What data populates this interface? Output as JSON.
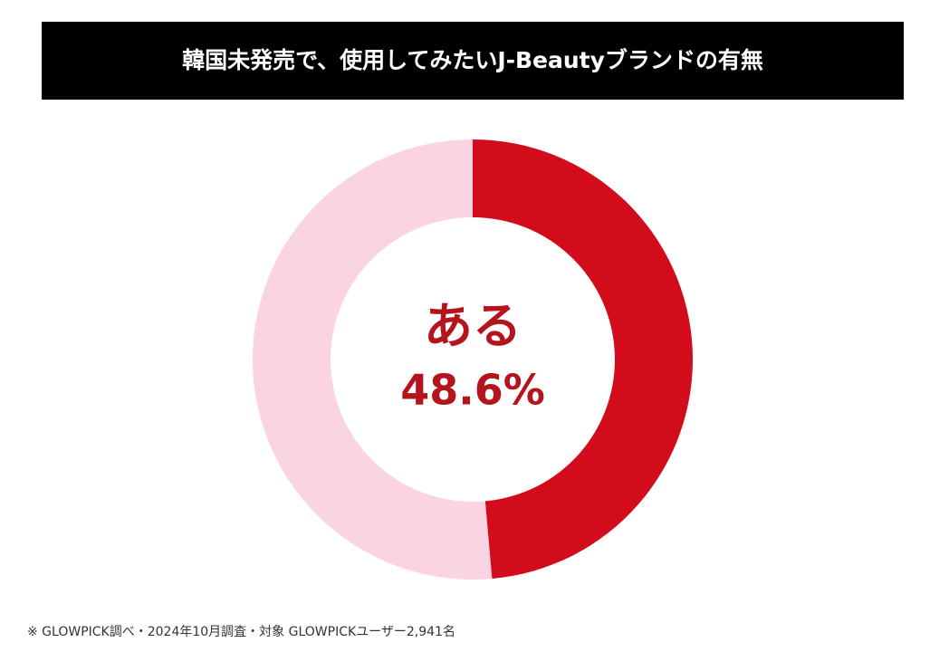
{
  "chart_data": {
    "type": "donut",
    "title": "韓国未発売で、使用してみたいJ-Beautyブランドの有無",
    "categories": [
      "ある",
      null
    ],
    "values": [
      48.6,
      51.4
    ],
    "value_labels": [
      "48.6%",
      null
    ],
    "colors": [
      "#d30c1c",
      "#fad4e2"
    ],
    "footnote": "※ GLOWPICK調べ・2024年10月調査・対象 GLOWPICKユーザー2,941名"
  }
}
